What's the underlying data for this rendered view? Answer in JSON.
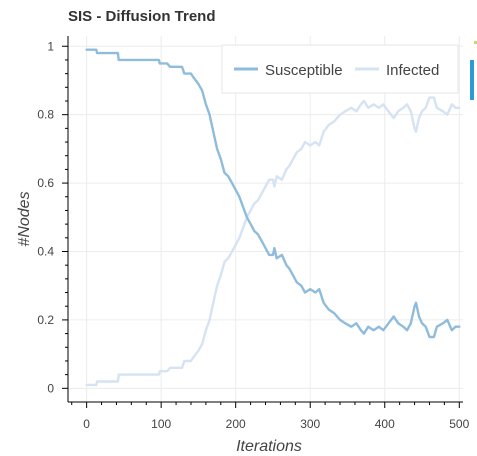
{
  "chart_data": {
    "type": "line",
    "title": "SIS - Diffusion Trend",
    "xlabel": "Iterations",
    "ylabel": "#Nodes",
    "xlim": [
      -25,
      505
    ],
    "ylim": [
      -0.04,
      1.03
    ],
    "xticks": [
      0,
      100,
      200,
      300,
      400,
      500
    ],
    "yticks": [
      0,
      0.2,
      0.4,
      0.6,
      0.8,
      1
    ],
    "xtick_labels": [
      "0",
      "100",
      "200",
      "300",
      "400",
      "500"
    ],
    "ytick_labels": [
      "0",
      "0.2",
      "0.4",
      "0.6",
      "0.8",
      "1"
    ],
    "grid": true,
    "legend_position": "top-right",
    "series": [
      {
        "name": "Susceptible",
        "color": "#8fbcdb",
        "points": [
          [
            0,
            0.99
          ],
          [
            13,
            0.99
          ],
          [
            14,
            0.98
          ],
          [
            42,
            0.98
          ],
          [
            43,
            0.96
          ],
          [
            97,
            0.96
          ],
          [
            98,
            0.95
          ],
          [
            108,
            0.95
          ],
          [
            112,
            0.94
          ],
          [
            128,
            0.94
          ],
          [
            131,
            0.92
          ],
          [
            140,
            0.92
          ],
          [
            143,
            0.91
          ],
          [
            150,
            0.89
          ],
          [
            155,
            0.87
          ],
          [
            160,
            0.83
          ],
          [
            165,
            0.8
          ],
          [
            170,
            0.75
          ],
          [
            175,
            0.7
          ],
          [
            180,
            0.67
          ],
          [
            185,
            0.63
          ],
          [
            190,
            0.62
          ],
          [
            195,
            0.6
          ],
          [
            200,
            0.58
          ],
          [
            205,
            0.56
          ],
          [
            210,
            0.53
          ],
          [
            215,
            0.5
          ],
          [
            220,
            0.48
          ],
          [
            225,
            0.46
          ],
          [
            230,
            0.45
          ],
          [
            235,
            0.43
          ],
          [
            240,
            0.41
          ],
          [
            245,
            0.39
          ],
          [
            250,
            0.39
          ],
          [
            252,
            0.41
          ],
          [
            255,
            0.38
          ],
          [
            262,
            0.39
          ],
          [
            268,
            0.36
          ],
          [
            272,
            0.35
          ],
          [
            277,
            0.33
          ],
          [
            282,
            0.31
          ],
          [
            288,
            0.3
          ],
          [
            293,
            0.28
          ],
          [
            300,
            0.29
          ],
          [
            307,
            0.28
          ],
          [
            312,
            0.29
          ],
          [
            318,
            0.25
          ],
          [
            325,
            0.23
          ],
          [
            332,
            0.22
          ],
          [
            340,
            0.2
          ],
          [
            347,
            0.19
          ],
          [
            355,
            0.18
          ],
          [
            362,
            0.19
          ],
          [
            368,
            0.17
          ],
          [
            372,
            0.16
          ],
          [
            378,
            0.18
          ],
          [
            385,
            0.17
          ],
          [
            392,
            0.18
          ],
          [
            398,
            0.17
          ],
          [
            405,
            0.19
          ],
          [
            412,
            0.21
          ],
          [
            418,
            0.19
          ],
          [
            425,
            0.18
          ],
          [
            430,
            0.17
          ],
          [
            435,
            0.19
          ],
          [
            440,
            0.24
          ],
          [
            442,
            0.25
          ],
          [
            446,
            0.21
          ],
          [
            450,
            0.19
          ],
          [
            455,
            0.18
          ],
          [
            460,
            0.15
          ],
          [
            466,
            0.15
          ],
          [
            470,
            0.18
          ],
          [
            478,
            0.19
          ],
          [
            484,
            0.2
          ],
          [
            490,
            0.17
          ],
          [
            495,
            0.18
          ],
          [
            500,
            0.18
          ]
        ]
      },
      {
        "name": "Infected",
        "color": "#d5e3f2",
        "points": [
          [
            0,
            0.01
          ],
          [
            13,
            0.01
          ],
          [
            14,
            0.02
          ],
          [
            42,
            0.02
          ],
          [
            43,
            0.04
          ],
          [
            97,
            0.04
          ],
          [
            98,
            0.05
          ],
          [
            108,
            0.05
          ],
          [
            112,
            0.06
          ],
          [
            128,
            0.06
          ],
          [
            131,
            0.08
          ],
          [
            140,
            0.08
          ],
          [
            143,
            0.09
          ],
          [
            150,
            0.11
          ],
          [
            155,
            0.13
          ],
          [
            160,
            0.17
          ],
          [
            165,
            0.2
          ],
          [
            170,
            0.25
          ],
          [
            175,
            0.3
          ],
          [
            180,
            0.33
          ],
          [
            185,
            0.37
          ],
          [
            190,
            0.38
          ],
          [
            195,
            0.4
          ],
          [
            200,
            0.42
          ],
          [
            205,
            0.44
          ],
          [
            210,
            0.47
          ],
          [
            215,
            0.5
          ],
          [
            220,
            0.52
          ],
          [
            225,
            0.54
          ],
          [
            230,
            0.55
          ],
          [
            235,
            0.57
          ],
          [
            240,
            0.59
          ],
          [
            245,
            0.61
          ],
          [
            250,
            0.61
          ],
          [
            252,
            0.59
          ],
          [
            255,
            0.62
          ],
          [
            262,
            0.61
          ],
          [
            268,
            0.64
          ],
          [
            272,
            0.65
          ],
          [
            277,
            0.67
          ],
          [
            282,
            0.69
          ],
          [
            288,
            0.7
          ],
          [
            293,
            0.72
          ],
          [
            300,
            0.71
          ],
          [
            307,
            0.72
          ],
          [
            312,
            0.71
          ],
          [
            318,
            0.75
          ],
          [
            325,
            0.77
          ],
          [
            332,
            0.78
          ],
          [
            340,
            0.8
          ],
          [
            347,
            0.81
          ],
          [
            355,
            0.82
          ],
          [
            362,
            0.81
          ],
          [
            368,
            0.83
          ],
          [
            372,
            0.84
          ],
          [
            378,
            0.82
          ],
          [
            385,
            0.83
          ],
          [
            392,
            0.82
          ],
          [
            398,
            0.83
          ],
          [
            405,
            0.81
          ],
          [
            412,
            0.79
          ],
          [
            418,
            0.81
          ],
          [
            425,
            0.82
          ],
          [
            430,
            0.83
          ],
          [
            435,
            0.81
          ],
          [
            440,
            0.76
          ],
          [
            442,
            0.75
          ],
          [
            446,
            0.79
          ],
          [
            450,
            0.81
          ],
          [
            455,
            0.82
          ],
          [
            460,
            0.85
          ],
          [
            466,
            0.85
          ],
          [
            470,
            0.82
          ],
          [
            478,
            0.81
          ],
          [
            484,
            0.8
          ],
          [
            490,
            0.83
          ],
          [
            495,
            0.82
          ],
          [
            500,
            0.82
          ]
        ]
      }
    ]
  }
}
